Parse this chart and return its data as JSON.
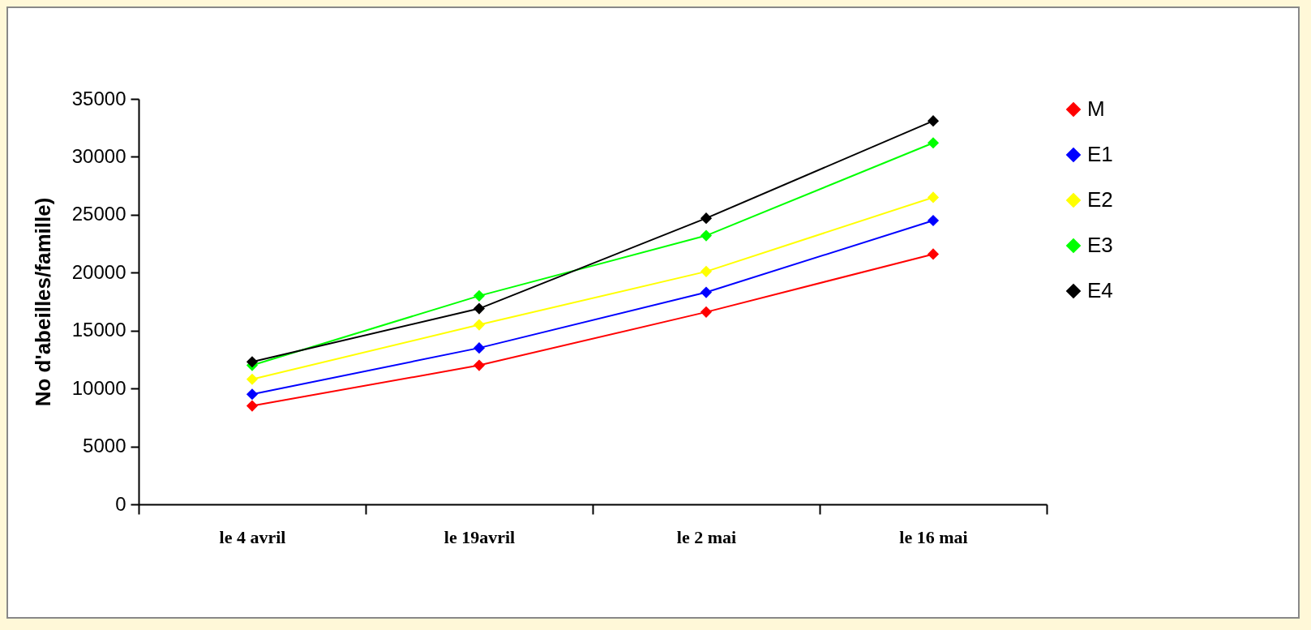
{
  "chart_data": {
    "type": "line",
    "ylabel": "No d'abeilles/famille)",
    "categories": [
      "le 4 avril",
      "le 19avril",
      "le 2 mai",
      "le 16 mai"
    ],
    "series": [
      {
        "name": "M",
        "color": "#ff0000",
        "values": [
          8500,
          12000,
          16600,
          21600
        ]
      },
      {
        "name": "E1",
        "color": "#0000ff",
        "values": [
          9500,
          13500,
          18300,
          24500
        ]
      },
      {
        "name": "E2",
        "color": "#ffff00",
        "values": [
          10800,
          15500,
          20100,
          26500
        ]
      },
      {
        "name": "E3",
        "color": "#00ff00",
        "values": [
          12000,
          18000,
          23200,
          31200
        ]
      },
      {
        "name": "E4",
        "color": "#000000",
        "values": [
          12300,
          16900,
          24700,
          33100
        ]
      }
    ],
    "ylim": [
      0,
      35000
    ],
    "yticks": [
      0,
      5000,
      10000,
      15000,
      20000,
      25000,
      30000,
      35000
    ],
    "grid": false,
    "legend": "right",
    "marker": "diamond",
    "line_style": "solid"
  }
}
